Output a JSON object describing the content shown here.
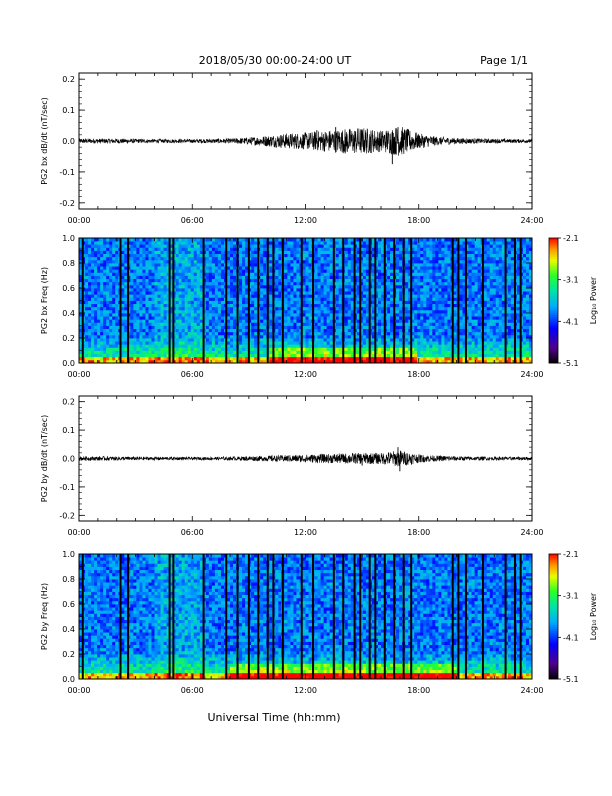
{
  "header": {
    "title": "2018/05/30  00:00-24:00 UT",
    "page_label": "Page 1/1"
  },
  "footer": {
    "xlabel": "Universal Time (hh:mm)"
  },
  "chart_data": [
    {
      "type": "line",
      "ylabel": "PG2 bx dB/dt (nT/sec)",
      "xlabel": "",
      "x_tick_labels": [
        "00:00",
        "06:00",
        "12:00",
        "18:00",
        "24:00"
      ],
      "y_tick_labels": [
        "0.2",
        "0.1",
        "0.0",
        "-0.1",
        "-0.2"
      ],
      "xlim_hours": [
        0,
        24
      ],
      "ylim": [
        -0.22,
        0.22
      ],
      "grid": false,
      "envelope": {
        "x_hours": [
          0,
          2,
          4,
          6,
          8,
          9,
          10,
          11,
          12,
          13,
          14,
          15,
          16,
          17,
          18,
          19,
          20,
          21,
          22,
          23,
          24
        ],
        "amplitude_nt_per_sec": [
          0.008,
          0.008,
          0.006,
          0.006,
          0.008,
          0.012,
          0.018,
          0.025,
          0.028,
          0.035,
          0.04,
          0.045,
          0.035,
          0.05,
          0.025,
          0.014,
          0.01,
          0.008,
          0.007,
          0.006,
          0.006
        ]
      },
      "spikes": [
        {
          "x_hours": 13.6,
          "y": 0.045
        },
        {
          "x_hours": 14.1,
          "y": -0.04
        },
        {
          "x_hours": 16.6,
          "y": -0.075
        },
        {
          "x_hours": 16.9,
          "y": 0.045
        },
        {
          "x_hours": 12.6,
          "y": 0.035
        }
      ],
      "color": "#000000"
    },
    {
      "type": "heatmap",
      "ylabel": "PG2 bx Freq (Hz)",
      "xlabel": "",
      "x_tick_labels": [
        "00:00",
        "06:00",
        "12:00",
        "18:00",
        "24:00"
      ],
      "y_tick_labels": [
        "1.0",
        "0.8",
        "0.6",
        "0.4",
        "0.2",
        "0.0"
      ],
      "xlim_hours": [
        0,
        24
      ],
      "ylim_hz": [
        0.0,
        1.0
      ],
      "colorbar": {
        "label": "Log₁₀ Power",
        "ticks": [
          "-2.1",
          "-3.1",
          "-4.1",
          "-5.1"
        ],
        "range": [
          -5.1,
          -2.1
        ],
        "colormap": "rainbow"
      },
      "data_gaps_hours": [
        0.2,
        2.2,
        2.6,
        4.8,
        5.0,
        6.6,
        7.8,
        8.4,
        9.0,
        9.5,
        10.0,
        10.3,
        10.8,
        11.8,
        12.4,
        13.5,
        14.0,
        14.6,
        14.9,
        15.4,
        15.7,
        16.2,
        16.7,
        17.2,
        17.6,
        19.8,
        20.1,
        20.5,
        21.4,
        22.6,
        23.1,
        23.4
      ],
      "low_frequency_enhancement_hours": [
        10,
        18
      ]
    },
    {
      "type": "line",
      "ylabel": "PG2 by dB/dt (nT/sec)",
      "xlabel": "",
      "x_tick_labels": [
        "00:00",
        "06:00",
        "12:00",
        "18:00",
        "24:00"
      ],
      "y_tick_labels": [
        "0.2",
        "0.1",
        "0.0",
        "-0.1",
        "-0.2"
      ],
      "xlim_hours": [
        0,
        24
      ],
      "ylim": [
        -0.22,
        0.22
      ],
      "grid": false,
      "envelope": {
        "x_hours": [
          0,
          2,
          4,
          6,
          8,
          9,
          10,
          11,
          12,
          13,
          14,
          15,
          16,
          17,
          18,
          19,
          20,
          21,
          22,
          23,
          24
        ],
        "amplitude_nt_per_sec": [
          0.008,
          0.007,
          0.006,
          0.005,
          0.006,
          0.008,
          0.01,
          0.012,
          0.014,
          0.016,
          0.018,
          0.02,
          0.02,
          0.03,
          0.015,
          0.01,
          0.008,
          0.007,
          0.006,
          0.006,
          0.006
        ]
      },
      "spikes": [
        {
          "x_hours": 16.9,
          "y": 0.04
        },
        {
          "x_hours": 17.0,
          "y": -0.045
        },
        {
          "x_hours": 15.0,
          "y": -0.025
        }
      ],
      "color": "#000000"
    },
    {
      "type": "heatmap",
      "ylabel": "PG2 by Freq (Hz)",
      "xlabel": "",
      "x_tick_labels": [
        "00:00",
        "06:00",
        "12:00",
        "18:00",
        "24:00"
      ],
      "y_tick_labels": [
        "1.0",
        "0.8",
        "0.6",
        "0.4",
        "0.2",
        "0.0"
      ],
      "xlim_hours": [
        0,
        24
      ],
      "ylim_hz": [
        0.0,
        1.0
      ],
      "colorbar": {
        "label": "Log₁₀ Power",
        "ticks": [
          "-2.1",
          "-3.1",
          "-4.1",
          "-5.1"
        ],
        "range": [
          -5.1,
          -2.1
        ],
        "colormap": "rainbow"
      },
      "data_gaps_hours": [
        0.2,
        2.2,
        2.6,
        4.8,
        5.0,
        6.6,
        7.8,
        8.4,
        9.0,
        9.5,
        10.0,
        10.3,
        10.8,
        11.8,
        12.4,
        13.5,
        14.0,
        14.6,
        14.9,
        15.4,
        15.7,
        16.2,
        16.7,
        17.2,
        17.6,
        19.8,
        20.1,
        20.5,
        21.4,
        22.6,
        23.1,
        23.4
      ],
      "low_frequency_enhancement_hours": [
        8,
        20
      ]
    }
  ]
}
